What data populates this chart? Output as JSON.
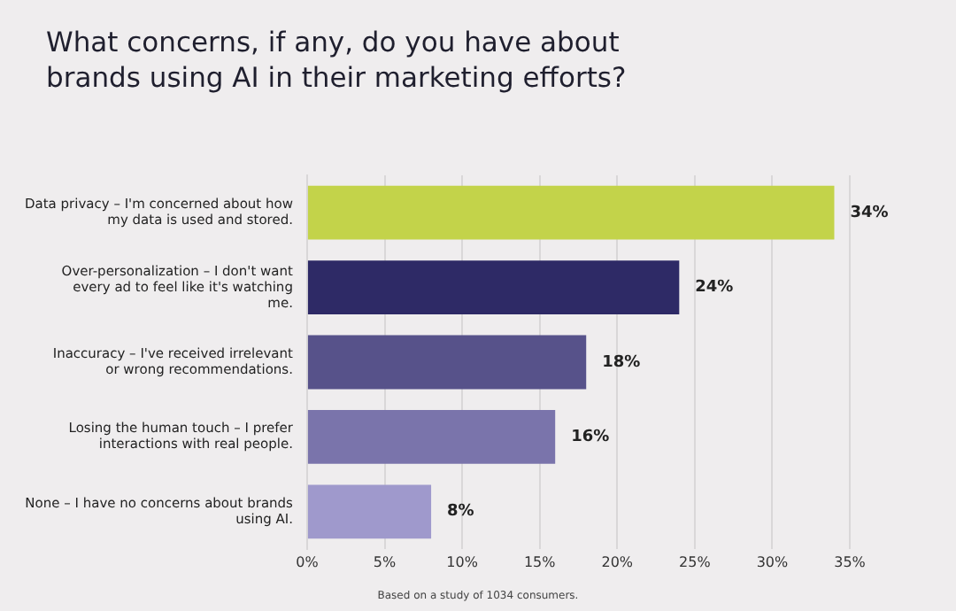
{
  "chart_data": {
    "type": "bar",
    "orientation": "horizontal",
    "title": "What concerns, if any, do you have about brands using AI in their marketing efforts?",
    "categories": [
      "Data privacy – I'm concerned about how my data is used and stored.",
      "Over-personalization – I don't want every ad to feel like it's watching me.",
      "Inaccuracy – I've received irrelevant or wrong recommendations.",
      "Losing the human touch – I prefer interactions with real people.",
      "None – I have no concerns about brands using AI."
    ],
    "values": [
      34,
      24,
      18,
      16,
      8
    ],
    "value_labels": [
      "34%",
      "24%",
      "18%",
      "16%",
      "8%"
    ],
    "colors": [
      "#c3d34a",
      "#2e2a66",
      "#57528a",
      "#7a74ab",
      "#9f99cc"
    ],
    "xlim": [
      0,
      35
    ],
    "xticks": [
      {
        "value": 0,
        "label": "0%"
      },
      {
        "value": 5,
        "label": "5%"
      },
      {
        "value": 10,
        "label": "10%"
      },
      {
        "value": 15,
        "label": "15%"
      },
      {
        "value": 20,
        "label": "20%"
      },
      {
        "value": 25,
        "label": "25%"
      },
      {
        "value": 30,
        "label": "30%"
      },
      {
        "value": 35,
        "label": "35%"
      }
    ],
    "grid": "x",
    "annotations": [
      "Based on a study of 1034 consumers."
    ]
  }
}
